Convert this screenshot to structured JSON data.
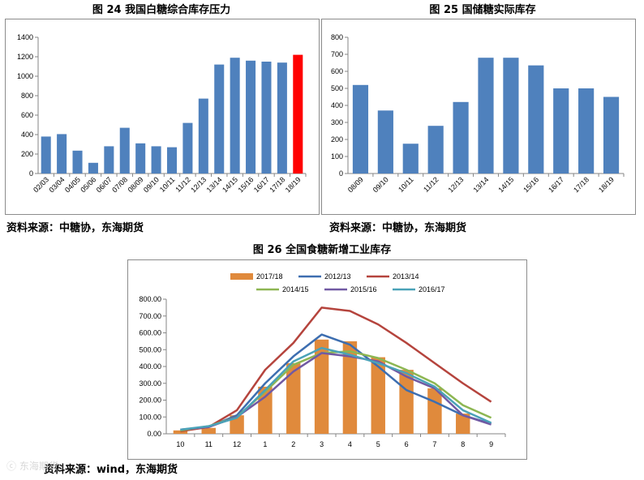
{
  "chart_data": [
    {
      "type": "bar",
      "title": "图 24  我国白糖综合库存压力",
      "source": "资料来源：中糖协，东海期货",
      "categories": [
        "02/03",
        "03/04",
        "04/05",
        "05/06",
        "06/07",
        "07/08",
        "08/09",
        "09/10",
        "10/11",
        "11/12",
        "12/13",
        "13/14",
        "14/15",
        "15/16",
        "16/17",
        "17/18",
        "18/19"
      ],
      "values": [
        380,
        405,
        235,
        110,
        280,
        470,
        310,
        280,
        270,
        520,
        770,
        1120,
        1190,
        1160,
        1150,
        1140,
        1220
      ],
      "highlight_index": 16,
      "ylim": [
        0,
        1400
      ],
      "yticks": [
        0,
        200,
        400,
        600,
        800,
        1000,
        1200,
        1400
      ],
      "grid": false,
      "colors": {
        "bar": "#4f81bd",
        "highlight": "#ff0000"
      }
    },
    {
      "type": "bar",
      "title": "图 25  国储糖实际库存",
      "source": "资料来源：中糖协，东海期货",
      "categories": [
        "08/09",
        "09/10",
        "10/11",
        "11/12",
        "12/13",
        "13/14",
        "14/15",
        "15/16",
        "16/17",
        "17/18",
        "18/19"
      ],
      "values": [
        520,
        370,
        175,
        280,
        420,
        680,
        680,
        635,
        500,
        500,
        450
      ],
      "ylim": [
        0,
        800
      ],
      "yticks": [
        0,
        100,
        200,
        300,
        400,
        500,
        600,
        700,
        800
      ],
      "grid": false,
      "colors": {
        "bar": "#4f81bd"
      }
    },
    {
      "type": "line",
      "title": "图 26  全国食糖新增工业库存",
      "source": "资料来源：wind，东海期货",
      "categories": [
        "10",
        "11",
        "12",
        "1",
        "2",
        "3",
        "4",
        "5",
        "6",
        "7",
        "8",
        "9"
      ],
      "ylim": [
        0,
        800
      ],
      "yticks": [
        "0.00",
        "100.00",
        "200.00",
        "300.00",
        "400.00",
        "500.00",
        "600.00",
        "700.00",
        "800.00"
      ],
      "grid": false,
      "legend_position": "top",
      "bar_series": {
        "name": "2017/18",
        "color": "#e08a3c",
        "values": [
          20,
          35,
          110,
          280,
          420,
          560,
          550,
          455,
          380,
          270,
          120,
          null
        ]
      },
      "series": [
        {
          "name": "2012/13",
          "color": "#3d6eb0",
          "values": [
            20,
            40,
            110,
            300,
            460,
            590,
            530,
            400,
            260,
            190,
            110,
            60
          ]
        },
        {
          "name": "2013/14",
          "color": "#b5443d",
          "values": [
            15,
            40,
            140,
            380,
            540,
            750,
            730,
            650,
            540,
            420,
            300,
            190
          ]
        },
        {
          "name": "2014/15",
          "color": "#8db652",
          "values": [
            20,
            45,
            100,
            250,
            410,
            480,
            490,
            450,
            380,
            300,
            170,
            95
          ]
        },
        {
          "name": "2015/16",
          "color": "#7159a3",
          "values": [
            25,
            40,
            100,
            220,
            370,
            480,
            460,
            430,
            340,
            270,
            110,
            55
          ]
        },
        {
          "name": "2016/17",
          "color": "#4aa2b8",
          "values": [
            25,
            45,
            95,
            260,
            430,
            510,
            470,
            420,
            360,
            280,
            140,
            65
          ]
        }
      ]
    }
  ],
  "watermark": "东海期货"
}
